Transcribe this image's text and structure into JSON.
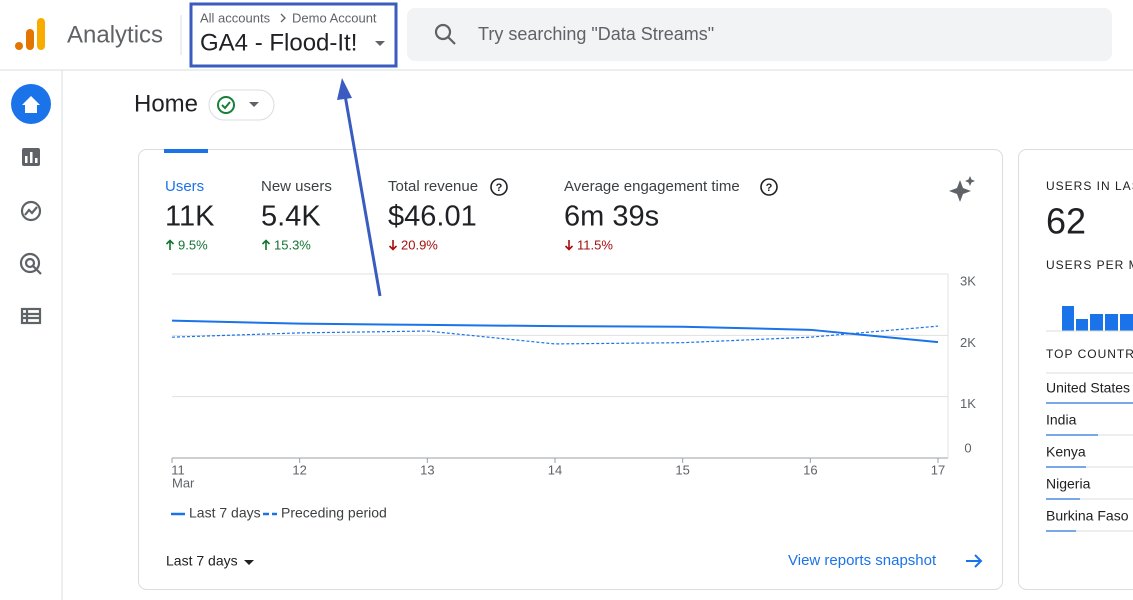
{
  "header": {
    "app_name": "Analytics",
    "breadcrumb": [
      "All accounts",
      "Demo Account"
    ],
    "property": "GA4 - Flood-It!",
    "search_placeholder": "Try searching \"Data Streams\""
  },
  "page_title": "Home",
  "metrics": [
    {
      "label": "Users",
      "value": "11K",
      "change": "9.5%",
      "direction": "up"
    },
    {
      "label": "New users",
      "value": "5.4K",
      "change": "15.3%",
      "direction": "up"
    },
    {
      "label": "Total revenue",
      "value": "$46.01",
      "change": "20.9%",
      "direction": "down"
    },
    {
      "label": "Average engagement time",
      "value": "6m 39s",
      "change": "11.5%",
      "direction": "down"
    }
  ],
  "chart_data": {
    "type": "line",
    "x": [
      "11",
      "12",
      "13",
      "14",
      "15",
      "16",
      "17"
    ],
    "month_label": "Mar",
    "series": [
      {
        "name": "Last 7 days",
        "color": "#1a73e8",
        "dashed": false,
        "values": [
          2240,
          2190,
          2170,
          2150,
          2140,
          2090,
          1890
        ]
      },
      {
        "name": "Preceding period",
        "color": "#1a73e8",
        "dashed": true,
        "values": [
          1970,
          2040,
          2070,
          1860,
          1880,
          1970,
          2150
        ]
      }
    ],
    "ylim": [
      0,
      3000
    ],
    "yticks": [
      {
        "value": 0,
        "label": "0"
      },
      {
        "value": 1000,
        "label": "1K"
      },
      {
        "value": 2000,
        "label": "2K"
      },
      {
        "value": 3000,
        "label": "3K"
      }
    ],
    "grid": true
  },
  "footer": {
    "range": "Last 7 days",
    "link": "View reports snapshot"
  },
  "side_card": {
    "title": "USERS IN LAS",
    "value": "62",
    "subtitle": "USERS PER M",
    "section": "TOP COUNTR",
    "countries": [
      "United States",
      "India",
      "Kenya",
      "Nigeria",
      "Burkina Faso"
    ]
  }
}
